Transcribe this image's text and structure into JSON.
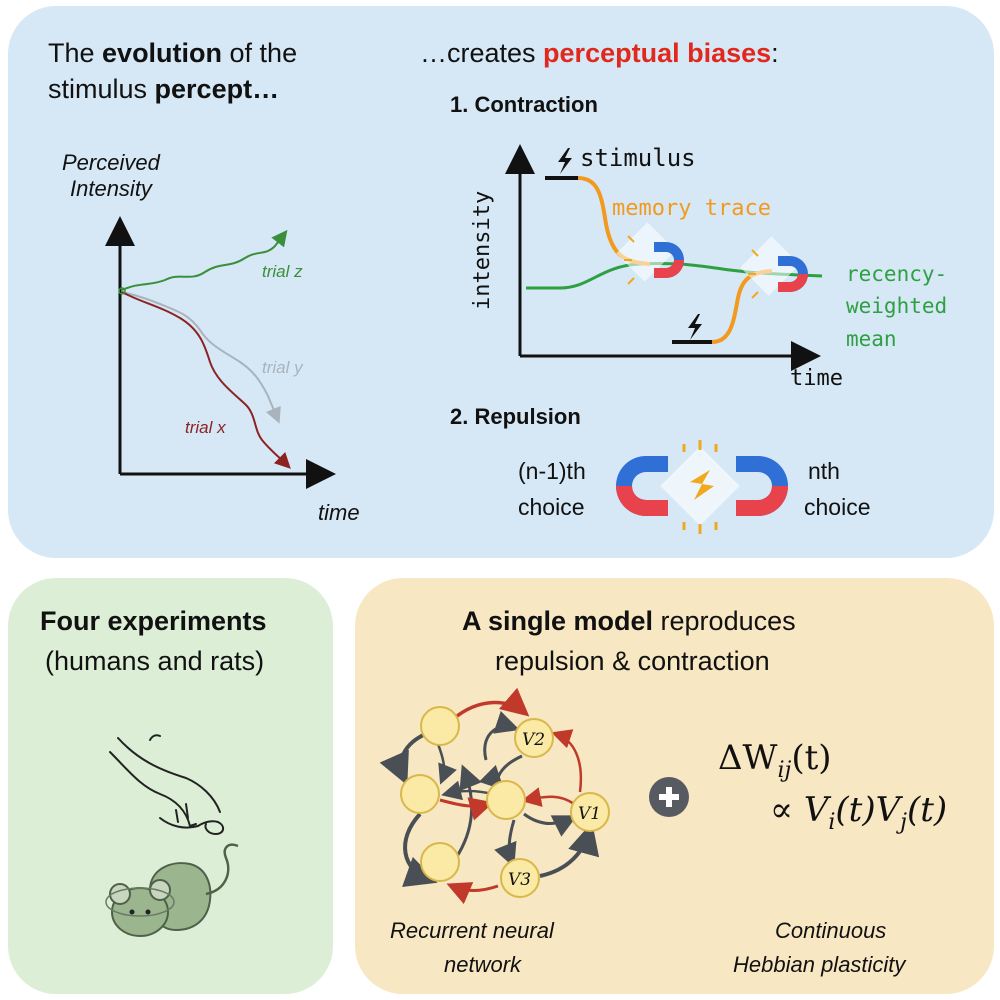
{
  "top_left": {
    "line1_pre": "The ",
    "line1_bold": "evolution",
    "line1_post": " of the",
    "line2_pre": "stimulus ",
    "line2_bold": "percept…",
    "y_label_1": "Perceived",
    "y_label_2": "Intensity",
    "x_label": "time",
    "trial_z": "trial z",
    "trial_y": "trial y",
    "trial_x": "trial x"
  },
  "top_right": {
    "heading_pre": "…creates ",
    "heading_red": "perceptual biases",
    "heading_post": ":",
    "contraction": "1. Contraction",
    "stimulus": "stimulus",
    "memory_trace": "memory trace",
    "recency_1": "recency-",
    "recency_2": "weighted",
    "recency_3": "mean",
    "y_axis": "intensity",
    "x_axis": "time",
    "repulsion": "2. Repulsion",
    "prev_choice_1": "(n-1)th",
    "prev_choice_2": "choice",
    "next_choice_1": "nth",
    "next_choice_2": "choice"
  },
  "bottom_left": {
    "title": "Four experiments",
    "subtitle": "(humans and rats)"
  },
  "bottom_right": {
    "title_bold": "A single model",
    "title_rest": " reproduces",
    "title_line2": "repulsion & contraction",
    "v1": "V1",
    "v2": "V2",
    "v3": "V3",
    "formula_line1": "ΔW",
    "formula_line1_sub": "ij",
    "formula_line1_arg": "(t)",
    "formula_line2": "∝ V",
    "formula_line2_sub1": "i",
    "formula_line2_mid": "(t)V",
    "formula_line2_sub2": "j",
    "formula_line2_end": "(t)",
    "caption_left_1": "Recurrent neural",
    "caption_left_2": "network",
    "caption_right_1": "Continuous",
    "caption_right_2": "Hebbian plasticity"
  },
  "colors": {
    "panel_top": "#d6e8f5",
    "panel_left": "#dcefd6",
    "panel_right": "#f7e7c2",
    "accent_red": "#e0281c",
    "trace_orange": "#f29a1f",
    "mean_green": "#2ea043",
    "trial_z": "#3a8f3a",
    "trial_y": "#a9b3bd",
    "trial_x": "#8b2323",
    "magnet_blue": "#2f6fd6",
    "magnet_red": "#e8434c",
    "node_fill": "#fbe9a6",
    "node_stroke": "#d8b84a"
  },
  "icons": [
    "lightning-icon",
    "magnet-icon",
    "finger-icon",
    "rat-icon",
    "plus-icon"
  ]
}
